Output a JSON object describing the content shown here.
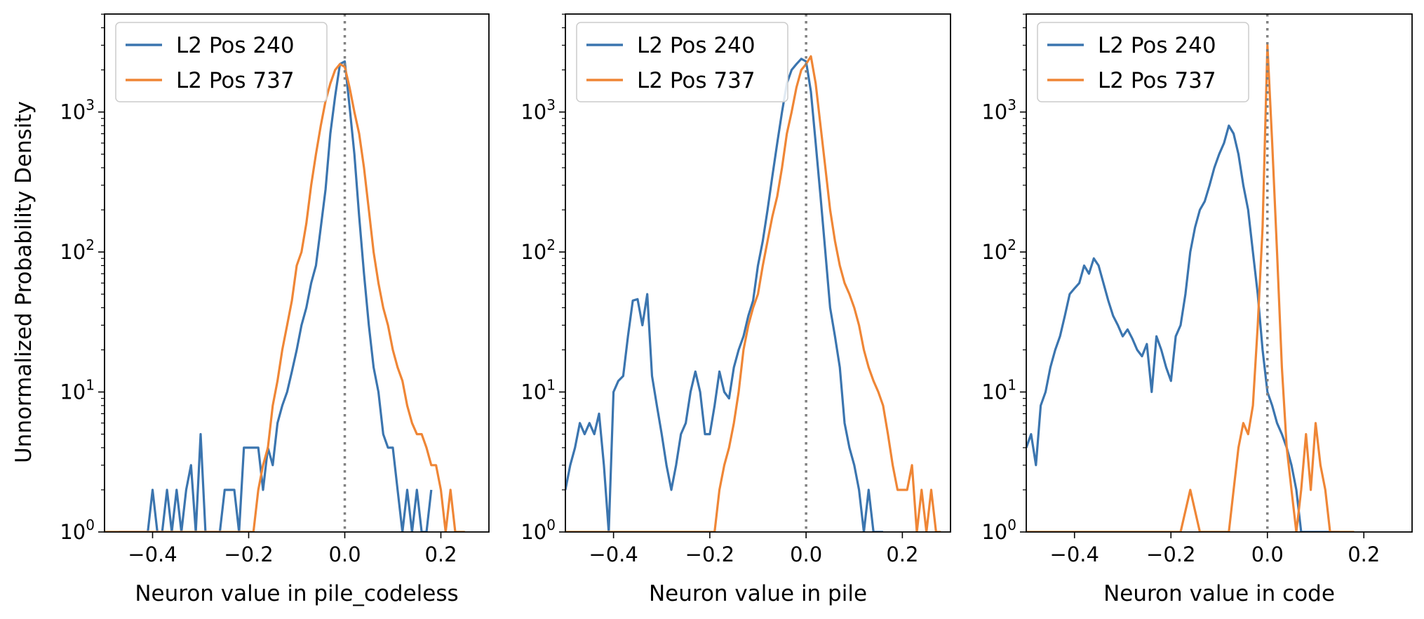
{
  "figure": {
    "ylabel": "Unnormalized Probability Density"
  },
  "colors": {
    "L2 Pos 240": "#3b75af",
    "L2 Pos 737": "#ef8636",
    "zero_line": "#808080"
  },
  "chart_data": [
    {
      "type": "line",
      "title": "",
      "xlabel": "Neuron value in pile_codeless",
      "ylabel": "Unnormalized Probability Density",
      "xlim": [
        -0.5,
        0.3
      ],
      "ylim_log10": [
        0,
        3.7
      ],
      "yscale": "log",
      "xticks": [
        -0.4,
        -0.2,
        0.0,
        0.2
      ],
      "xtick_labels": [
        "−0.4",
        "−0.2",
        "0.0",
        "0.2"
      ],
      "ytick_exponents": [
        0,
        1,
        2,
        3
      ],
      "ytick_base": "10",
      "vline_x": 0.0,
      "legend": {
        "position": "upper left",
        "entries": [
          "L2 Pos 240",
          "L2 Pos 737"
        ]
      },
      "series": [
        {
          "name": "L2 Pos 240",
          "x": [
            -0.47,
            -0.46,
            -0.45,
            -0.44,
            -0.43,
            -0.42,
            -0.41,
            -0.4,
            -0.39,
            -0.38,
            -0.37,
            -0.36,
            -0.35,
            -0.34,
            -0.33,
            -0.32,
            -0.31,
            -0.3,
            -0.29,
            -0.28,
            -0.27,
            -0.26,
            -0.25,
            -0.24,
            -0.23,
            -0.22,
            -0.21,
            -0.2,
            -0.19,
            -0.18,
            -0.17,
            -0.16,
            -0.15,
            -0.14,
            -0.13,
            -0.12,
            -0.11,
            -0.1,
            -0.09,
            -0.08,
            -0.07,
            -0.06,
            -0.05,
            -0.04,
            -0.03,
            -0.02,
            -0.01,
            0.0,
            0.01,
            0.02,
            0.03,
            0.04,
            0.05,
            0.06,
            0.07,
            0.08,
            0.09,
            0.1,
            0.11,
            0.12,
            0.13,
            0.14,
            0.15,
            0.16,
            0.17,
            0.18
          ],
          "y": [
            1,
            1,
            1,
            1,
            1,
            1,
            1,
            2,
            1,
            1,
            2,
            1,
            2,
            1,
            2,
            3,
            1,
            5,
            1,
            1,
            1,
            1,
            2,
            2,
            2,
            1,
            4,
            4,
            4,
            4,
            2,
            4,
            3,
            6,
            8,
            10,
            14,
            20,
            30,
            40,
            60,
            80,
            150,
            280,
            700,
            1300,
            2200,
            2300,
            1100,
            500,
            180,
            70,
            30,
            15,
            10,
            5,
            4,
            4,
            2,
            1,
            2,
            1,
            2,
            1,
            1,
            2
          ]
        },
        {
          "name": "L2 Pos 737",
          "x": [
            -0.5,
            -0.49,
            -0.48,
            -0.47,
            -0.46,
            -0.45,
            -0.44,
            -0.43,
            -0.42,
            -0.41,
            -0.4,
            -0.39,
            -0.38,
            -0.37,
            -0.36,
            -0.35,
            -0.34,
            -0.33,
            -0.32,
            -0.31,
            -0.3,
            -0.29,
            -0.28,
            -0.27,
            -0.26,
            -0.25,
            -0.24,
            -0.23,
            -0.22,
            -0.21,
            -0.2,
            -0.19,
            -0.18,
            -0.17,
            -0.16,
            -0.15,
            -0.14,
            -0.13,
            -0.12,
            -0.11,
            -0.1,
            -0.09,
            -0.08,
            -0.07,
            -0.06,
            -0.05,
            -0.04,
            -0.03,
            -0.02,
            -0.01,
            0.0,
            0.01,
            0.02,
            0.03,
            0.04,
            0.05,
            0.06,
            0.07,
            0.08,
            0.09,
            0.1,
            0.11,
            0.12,
            0.13,
            0.14,
            0.15,
            0.16,
            0.17,
            0.18,
            0.19,
            0.2,
            0.21,
            0.22,
            0.23,
            0.24,
            0.25
          ],
          "y": [
            1,
            1,
            1,
            1,
            1,
            1,
            1,
            1,
            1,
            1,
            1,
            1,
            1,
            1,
            1,
            1,
            1,
            1,
            1,
            1,
            1,
            1,
            1,
            1,
            1,
            1,
            1,
            1,
            1,
            1,
            1,
            1,
            2,
            3,
            4,
            8,
            12,
            20,
            30,
            45,
            80,
            100,
            160,
            300,
            500,
            800,
            1200,
            1600,
            2000,
            2200,
            2100,
            1500,
            1000,
            700,
            400,
            200,
            100,
            60,
            40,
            30,
            20,
            15,
            12,
            8,
            6,
            5,
            5,
            4,
            3,
            3,
            2,
            1,
            2,
            1,
            1,
            1
          ]
        }
      ]
    },
    {
      "type": "line",
      "title": "",
      "xlabel": "Neuron value in pile",
      "ylabel": "",
      "xlim": [
        -0.5,
        0.3
      ],
      "ylim_log10": [
        0,
        3.7
      ],
      "yscale": "log",
      "xticks": [
        -0.4,
        -0.2,
        0.0,
        0.2
      ],
      "xtick_labels": [
        "−0.4",
        "−0.2",
        "0.0",
        "0.2"
      ],
      "ytick_exponents": [
        0,
        1,
        2,
        3
      ],
      "ytick_base": "10",
      "vline_x": 0.0,
      "legend": {
        "position": "upper left",
        "entries": [
          "L2 Pos 240",
          "L2 Pos 737"
        ]
      },
      "series": [
        {
          "name": "L2 Pos 240",
          "x": [
            -0.5,
            -0.49,
            -0.48,
            -0.47,
            -0.46,
            -0.45,
            -0.44,
            -0.43,
            -0.42,
            -0.41,
            -0.4,
            -0.39,
            -0.38,
            -0.37,
            -0.36,
            -0.35,
            -0.34,
            -0.33,
            -0.32,
            -0.31,
            -0.3,
            -0.29,
            -0.28,
            -0.27,
            -0.26,
            -0.25,
            -0.24,
            -0.23,
            -0.22,
            -0.21,
            -0.2,
            -0.19,
            -0.18,
            -0.17,
            -0.16,
            -0.15,
            -0.14,
            -0.13,
            -0.12,
            -0.11,
            -0.1,
            -0.09,
            -0.08,
            -0.07,
            -0.06,
            -0.05,
            -0.04,
            -0.03,
            -0.02,
            -0.01,
            0.0,
            0.01,
            0.02,
            0.03,
            0.04,
            0.05,
            0.06,
            0.07,
            0.08,
            0.09,
            0.1,
            0.11,
            0.12,
            0.13,
            0.14,
            0.15,
            0.16
          ],
          "y": [
            2,
            3,
            4,
            6,
            5,
            6,
            5,
            7,
            3,
            1,
            10,
            12,
            13,
            25,
            45,
            46,
            30,
            50,
            13,
            8,
            5,
            3,
            2,
            3,
            5,
            6,
            10,
            14,
            10,
            5,
            5,
            8,
            14,
            10,
            9,
            15,
            20,
            25,
            35,
            45,
            80,
            120,
            200,
            350,
            600,
            1000,
            1600,
            2000,
            2200,
            2400,
            2300,
            1400,
            600,
            250,
            100,
            40,
            25,
            15,
            6,
            4,
            3,
            2,
            1,
            2,
            1,
            1,
            1
          ]
        },
        {
          "name": "L2 Pos 737",
          "x": [
            -0.5,
            -0.48,
            -0.46,
            -0.44,
            -0.42,
            -0.4,
            -0.38,
            -0.36,
            -0.34,
            -0.32,
            -0.3,
            -0.28,
            -0.27,
            -0.26,
            -0.25,
            -0.24,
            -0.23,
            -0.22,
            -0.21,
            -0.2,
            -0.19,
            -0.18,
            -0.17,
            -0.16,
            -0.15,
            -0.14,
            -0.13,
            -0.12,
            -0.11,
            -0.1,
            -0.09,
            -0.08,
            -0.07,
            -0.06,
            -0.05,
            -0.04,
            -0.03,
            -0.02,
            -0.01,
            0.0,
            0.01,
            0.02,
            0.03,
            0.04,
            0.05,
            0.06,
            0.07,
            0.08,
            0.09,
            0.1,
            0.11,
            0.12,
            0.13,
            0.14,
            0.15,
            0.16,
            0.17,
            0.18,
            0.19,
            0.2,
            0.21,
            0.22,
            0.23,
            0.24,
            0.25,
            0.26,
            0.27,
            0.28
          ],
          "y": [
            1,
            1,
            1,
            1,
            1,
            1,
            1,
            1,
            1,
            1,
            1,
            1,
            1,
            1,
            1,
            1,
            1,
            1,
            1,
            1,
            1,
            2,
            3,
            4,
            6,
            10,
            20,
            30,
            40,
            50,
            80,
            120,
            180,
            250,
            400,
            700,
            1000,
            1500,
            2000,
            2200,
            2500,
            1600,
            800,
            400,
            200,
            120,
            80,
            60,
            50,
            40,
            30,
            20,
            15,
            12,
            10,
            8,
            5,
            3,
            2,
            2,
            2,
            3,
            1,
            2,
            1,
            2,
            1,
            1
          ]
        }
      ]
    },
    {
      "type": "line",
      "title": "",
      "xlabel": "Neuron value in code",
      "ylabel": "",
      "xlim": [
        -0.5,
        0.3
      ],
      "ylim_log10": [
        0,
        3.7
      ],
      "yscale": "log",
      "xticks": [
        -0.4,
        -0.2,
        0.0,
        0.2
      ],
      "xtick_labels": [
        "−0.4",
        "−0.2",
        "0.0",
        "0.2"
      ],
      "ytick_exponents": [
        0,
        1,
        2,
        3
      ],
      "ytick_base": "10",
      "vline_x": 0.0,
      "legend": {
        "position": "upper left",
        "entries": [
          "L2 Pos 240",
          "L2 Pos 737"
        ]
      },
      "series": [
        {
          "name": "L2 Pos 240",
          "x": [
            -0.5,
            -0.49,
            -0.48,
            -0.47,
            -0.46,
            -0.45,
            -0.44,
            -0.43,
            -0.42,
            -0.41,
            -0.4,
            -0.39,
            -0.38,
            -0.37,
            -0.36,
            -0.35,
            -0.34,
            -0.33,
            -0.32,
            -0.31,
            -0.3,
            -0.29,
            -0.28,
            -0.27,
            -0.26,
            -0.25,
            -0.24,
            -0.23,
            -0.22,
            -0.21,
            -0.2,
            -0.19,
            -0.18,
            -0.17,
            -0.16,
            -0.15,
            -0.14,
            -0.13,
            -0.12,
            -0.11,
            -0.1,
            -0.09,
            -0.08,
            -0.07,
            -0.06,
            -0.05,
            -0.04,
            -0.03,
            -0.02,
            -0.01,
            0.0,
            0.01,
            0.02,
            0.03,
            0.04,
            0.05,
            0.06,
            0.07,
            0.08,
            0.09,
            0.1,
            0.11,
            0.12,
            0.13,
            0.14,
            0.15
          ],
          "y": [
            4,
            5,
            3,
            8,
            10,
            15,
            20,
            25,
            35,
            50,
            55,
            60,
            80,
            70,
            90,
            80,
            60,
            45,
            35,
            30,
            25,
            28,
            24,
            20,
            18,
            22,
            10,
            25,
            20,
            15,
            12,
            25,
            30,
            50,
            100,
            150,
            200,
            230,
            300,
            400,
            500,
            600,
            800,
            700,
            500,
            300,
            200,
            100,
            50,
            20,
            10,
            8,
            6,
            5,
            4,
            3,
            2,
            1,
            1,
            1,
            1,
            1,
            1,
            1,
            1,
            1
          ]
        },
        {
          "name": "L2 Pos 737",
          "x": [
            -0.5,
            -0.4,
            -0.3,
            -0.2,
            -0.18,
            -0.16,
            -0.14,
            -0.12,
            -0.11,
            -0.1,
            -0.09,
            -0.08,
            -0.07,
            -0.06,
            -0.05,
            -0.04,
            -0.03,
            -0.02,
            -0.01,
            0.0,
            0.01,
            0.02,
            0.03,
            0.04,
            0.05,
            0.06,
            0.07,
            0.08,
            0.09,
            0.1,
            0.11,
            0.12,
            0.13,
            0.14,
            0.15,
            0.16,
            0.17,
            0.18
          ],
          "y": [
            1,
            1,
            1,
            1,
            1,
            2,
            1,
            1,
            1,
            1,
            1,
            1,
            2,
            4,
            6,
            5,
            8,
            30,
            150,
            3000,
            600,
            100,
            15,
            4,
            2,
            1,
            2,
            5,
            2,
            6,
            3,
            2,
            1,
            1,
            1,
            1,
            1,
            1
          ]
        }
      ]
    }
  ]
}
